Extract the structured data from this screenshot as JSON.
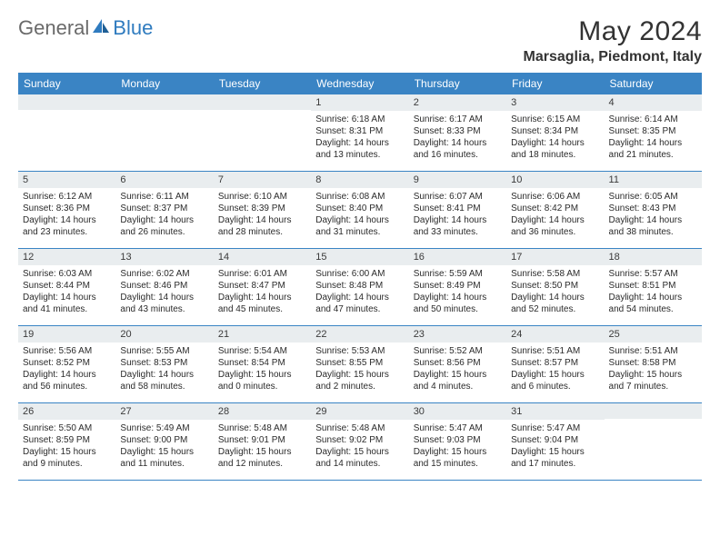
{
  "logo": {
    "general": "General",
    "blue": "Blue"
  },
  "title": "May 2024",
  "location": "Marsaglia, Piedmont, Italy",
  "colors": {
    "header_bg": "#3a84c4",
    "header_text": "#ffffff",
    "daynum_bg": "#e9edef",
    "border": "#3a84c4",
    "text": "#2b2b2b",
    "logo_gray": "#6a6a6a",
    "logo_blue": "#2f7bbf"
  },
  "day_names": [
    "Sunday",
    "Monday",
    "Tuesday",
    "Wednesday",
    "Thursday",
    "Friday",
    "Saturday"
  ],
  "weeks": [
    [
      {
        "empty": true
      },
      {
        "empty": true
      },
      {
        "empty": true
      },
      {
        "num": "1",
        "sunrise": "Sunrise: 6:18 AM",
        "sunset": "Sunset: 8:31 PM",
        "daylight": "Daylight: 14 hours and 13 minutes."
      },
      {
        "num": "2",
        "sunrise": "Sunrise: 6:17 AM",
        "sunset": "Sunset: 8:33 PM",
        "daylight": "Daylight: 14 hours and 16 minutes."
      },
      {
        "num": "3",
        "sunrise": "Sunrise: 6:15 AM",
        "sunset": "Sunset: 8:34 PM",
        "daylight": "Daylight: 14 hours and 18 minutes."
      },
      {
        "num": "4",
        "sunrise": "Sunrise: 6:14 AM",
        "sunset": "Sunset: 8:35 PM",
        "daylight": "Daylight: 14 hours and 21 minutes."
      }
    ],
    [
      {
        "num": "5",
        "sunrise": "Sunrise: 6:12 AM",
        "sunset": "Sunset: 8:36 PM",
        "daylight": "Daylight: 14 hours and 23 minutes."
      },
      {
        "num": "6",
        "sunrise": "Sunrise: 6:11 AM",
        "sunset": "Sunset: 8:37 PM",
        "daylight": "Daylight: 14 hours and 26 minutes."
      },
      {
        "num": "7",
        "sunrise": "Sunrise: 6:10 AM",
        "sunset": "Sunset: 8:39 PM",
        "daylight": "Daylight: 14 hours and 28 minutes."
      },
      {
        "num": "8",
        "sunrise": "Sunrise: 6:08 AM",
        "sunset": "Sunset: 8:40 PM",
        "daylight": "Daylight: 14 hours and 31 minutes."
      },
      {
        "num": "9",
        "sunrise": "Sunrise: 6:07 AM",
        "sunset": "Sunset: 8:41 PM",
        "daylight": "Daylight: 14 hours and 33 minutes."
      },
      {
        "num": "10",
        "sunrise": "Sunrise: 6:06 AM",
        "sunset": "Sunset: 8:42 PM",
        "daylight": "Daylight: 14 hours and 36 minutes."
      },
      {
        "num": "11",
        "sunrise": "Sunrise: 6:05 AM",
        "sunset": "Sunset: 8:43 PM",
        "daylight": "Daylight: 14 hours and 38 minutes."
      }
    ],
    [
      {
        "num": "12",
        "sunrise": "Sunrise: 6:03 AM",
        "sunset": "Sunset: 8:44 PM",
        "daylight": "Daylight: 14 hours and 41 minutes."
      },
      {
        "num": "13",
        "sunrise": "Sunrise: 6:02 AM",
        "sunset": "Sunset: 8:46 PM",
        "daylight": "Daylight: 14 hours and 43 minutes."
      },
      {
        "num": "14",
        "sunrise": "Sunrise: 6:01 AM",
        "sunset": "Sunset: 8:47 PM",
        "daylight": "Daylight: 14 hours and 45 minutes."
      },
      {
        "num": "15",
        "sunrise": "Sunrise: 6:00 AM",
        "sunset": "Sunset: 8:48 PM",
        "daylight": "Daylight: 14 hours and 47 minutes."
      },
      {
        "num": "16",
        "sunrise": "Sunrise: 5:59 AM",
        "sunset": "Sunset: 8:49 PM",
        "daylight": "Daylight: 14 hours and 50 minutes."
      },
      {
        "num": "17",
        "sunrise": "Sunrise: 5:58 AM",
        "sunset": "Sunset: 8:50 PM",
        "daylight": "Daylight: 14 hours and 52 minutes."
      },
      {
        "num": "18",
        "sunrise": "Sunrise: 5:57 AM",
        "sunset": "Sunset: 8:51 PM",
        "daylight": "Daylight: 14 hours and 54 minutes."
      }
    ],
    [
      {
        "num": "19",
        "sunrise": "Sunrise: 5:56 AM",
        "sunset": "Sunset: 8:52 PM",
        "daylight": "Daylight: 14 hours and 56 minutes."
      },
      {
        "num": "20",
        "sunrise": "Sunrise: 5:55 AM",
        "sunset": "Sunset: 8:53 PM",
        "daylight": "Daylight: 14 hours and 58 minutes."
      },
      {
        "num": "21",
        "sunrise": "Sunrise: 5:54 AM",
        "sunset": "Sunset: 8:54 PM",
        "daylight": "Daylight: 15 hours and 0 minutes."
      },
      {
        "num": "22",
        "sunrise": "Sunrise: 5:53 AM",
        "sunset": "Sunset: 8:55 PM",
        "daylight": "Daylight: 15 hours and 2 minutes."
      },
      {
        "num": "23",
        "sunrise": "Sunrise: 5:52 AM",
        "sunset": "Sunset: 8:56 PM",
        "daylight": "Daylight: 15 hours and 4 minutes."
      },
      {
        "num": "24",
        "sunrise": "Sunrise: 5:51 AM",
        "sunset": "Sunset: 8:57 PM",
        "daylight": "Daylight: 15 hours and 6 minutes."
      },
      {
        "num": "25",
        "sunrise": "Sunrise: 5:51 AM",
        "sunset": "Sunset: 8:58 PM",
        "daylight": "Daylight: 15 hours and 7 minutes."
      }
    ],
    [
      {
        "num": "26",
        "sunrise": "Sunrise: 5:50 AM",
        "sunset": "Sunset: 8:59 PM",
        "daylight": "Daylight: 15 hours and 9 minutes."
      },
      {
        "num": "27",
        "sunrise": "Sunrise: 5:49 AM",
        "sunset": "Sunset: 9:00 PM",
        "daylight": "Daylight: 15 hours and 11 minutes."
      },
      {
        "num": "28",
        "sunrise": "Sunrise: 5:48 AM",
        "sunset": "Sunset: 9:01 PM",
        "daylight": "Daylight: 15 hours and 12 minutes."
      },
      {
        "num": "29",
        "sunrise": "Sunrise: 5:48 AM",
        "sunset": "Sunset: 9:02 PM",
        "daylight": "Daylight: 15 hours and 14 minutes."
      },
      {
        "num": "30",
        "sunrise": "Sunrise: 5:47 AM",
        "sunset": "Sunset: 9:03 PM",
        "daylight": "Daylight: 15 hours and 15 minutes."
      },
      {
        "num": "31",
        "sunrise": "Sunrise: 5:47 AM",
        "sunset": "Sunset: 9:04 PM",
        "daylight": "Daylight: 15 hours and 17 minutes."
      },
      {
        "empty": true
      }
    ]
  ]
}
